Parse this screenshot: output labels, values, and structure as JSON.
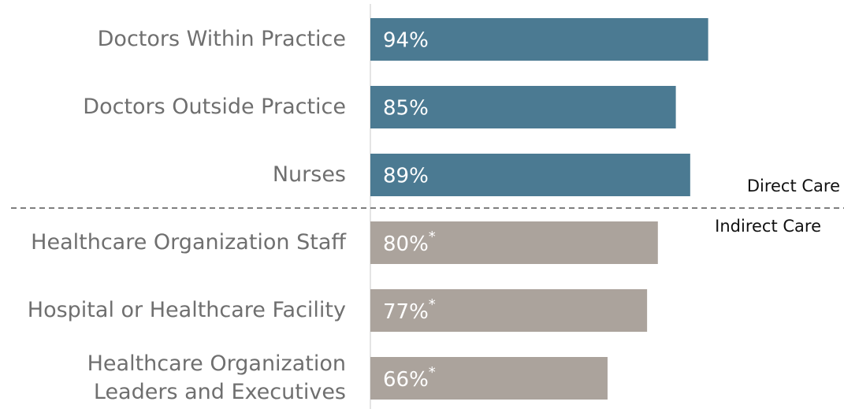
{
  "chart_data": {
    "type": "bar",
    "orientation": "horizontal",
    "categories": [
      "Doctors Within Practice",
      "Doctors Outside Practice",
      "Nurses",
      "Healthcare Organization Staff",
      "Hospital or Healthcare Facility",
      "Healthcare Organization\nLeaders and Executives"
    ],
    "values": [
      94,
      85,
      89,
      80,
      77,
      66
    ],
    "value_labels": [
      "94%",
      "85%",
      "89%",
      "80%*",
      "77%*",
      "66%*"
    ],
    "colors": [
      "#4b7a92",
      "#4b7a92",
      "#4b7a92",
      "#aba39c",
      "#aba39c",
      "#aba39c"
    ],
    "xlim": [
      0,
      100
    ],
    "annotations": [
      "Direct Care",
      "Indirect Care"
    ]
  }
}
